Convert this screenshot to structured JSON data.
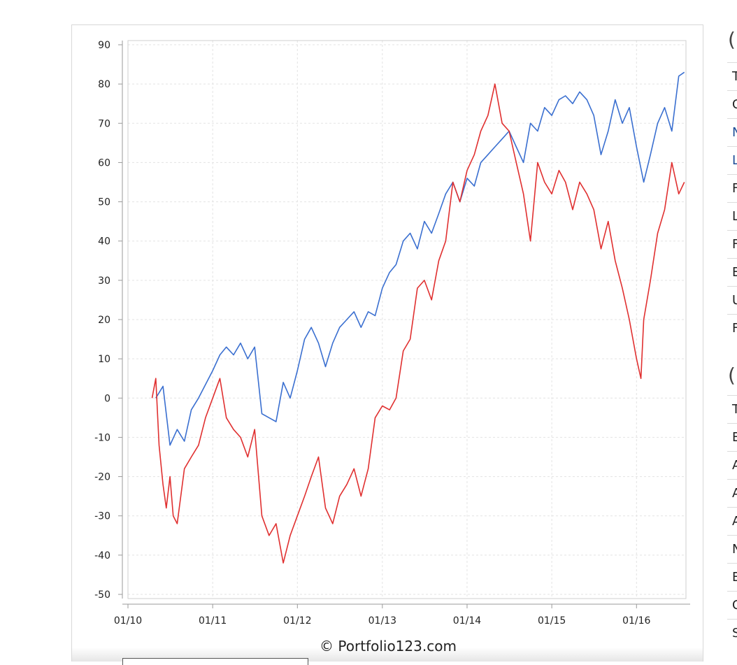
{
  "chart_data": {
    "type": "line",
    "title": "",
    "xlabel": "",
    "ylabel": "",
    "ylim": [
      -50,
      90
    ],
    "yticks": [
      90,
      80,
      70,
      60,
      50,
      40,
      30,
      20,
      10,
      0,
      -10,
      -20,
      -30,
      -40,
      -50
    ],
    "xlim": [
      "2010-01-01",
      "2016-08-01"
    ],
    "xticks": [
      "01/10",
      "01/11",
      "01/12",
      "01/13",
      "01/14",
      "01/15",
      "01/16"
    ],
    "grid": true,
    "series": [
      {
        "color": "#3a6fd0",
        "x": [
          "2010-05-01",
          "2010-06-01",
          "2010-07-01",
          "2010-08-01",
          "2010-09-01",
          "2010-10-01",
          "2010-11-01",
          "2011-01-01",
          "2011-02-01",
          "2011-03-01",
          "2011-04-01",
          "2011-05-01",
          "2011-06-01",
          "2011-07-01",
          "2011-08-01",
          "2011-09-01",
          "2011-10-01",
          "2011-11-01",
          "2011-12-01",
          "2012-01-01",
          "2012-02-01",
          "2012-03-01",
          "2012-04-01",
          "2012-05-01",
          "2012-06-01",
          "2012-07-01",
          "2012-08-01",
          "2012-09-01",
          "2012-10-01",
          "2012-11-01",
          "2012-12-01",
          "2013-01-01",
          "2013-02-01",
          "2013-03-01",
          "2013-04-01",
          "2013-05-01",
          "2013-06-01",
          "2013-07-01",
          "2013-08-01",
          "2013-09-01",
          "2013-10-01",
          "2013-11-01",
          "2013-12-01",
          "2014-01-01",
          "2014-02-01",
          "2014-03-01",
          "2014-04-01",
          "2014-05-01",
          "2014-06-01",
          "2014-07-01",
          "2014-08-01",
          "2014-09-01",
          "2014-10-01",
          "2014-11-01",
          "2014-12-01",
          "2015-01-01",
          "2015-02-01",
          "2015-03-01",
          "2015-04-01",
          "2015-05-01",
          "2015-06-01",
          "2015-07-01",
          "2015-08-01",
          "2015-09-01",
          "2015-10-01",
          "2015-11-01",
          "2015-12-01",
          "2016-01-01",
          "2016-02-01",
          "2016-03-01",
          "2016-04-01",
          "2016-05-01",
          "2016-06-01",
          "2016-07-01",
          "2016-07-25"
        ],
        "values": [
          0,
          3,
          -12,
          -8,
          -11,
          -3,
          0,
          7,
          11,
          13,
          11,
          14,
          10,
          13,
          -4,
          -5,
          -6,
          4,
          0,
          7,
          15,
          18,
          14,
          8,
          14,
          18,
          20,
          22,
          18,
          22,
          21,
          28,
          32,
          34,
          40,
          42,
          38,
          45,
          42,
          47,
          52,
          55,
          50,
          56,
          54,
          60,
          62,
          64,
          66,
          68,
          64,
          60,
          70,
          68,
          74,
          72,
          76,
          77,
          75,
          78,
          76,
          72,
          62,
          68,
          76,
          70,
          74,
          64,
          55,
          62,
          70,
          74,
          68,
          82,
          83
        ]
      },
      {
        "color": "#e03030",
        "x": [
          "2010-04-15",
          "2010-05-01",
          "2010-05-15",
          "2010-06-01",
          "2010-06-15",
          "2010-07-01",
          "2010-07-15",
          "2010-08-01",
          "2010-09-01",
          "2010-10-01",
          "2010-11-01",
          "2010-12-01",
          "2011-01-01",
          "2011-02-01",
          "2011-03-01",
          "2011-04-01",
          "2011-05-01",
          "2011-06-01",
          "2011-07-01",
          "2011-08-01",
          "2011-09-01",
          "2011-10-01",
          "2011-11-01",
          "2011-12-01",
          "2012-01-01",
          "2012-02-01",
          "2012-03-01",
          "2012-04-01",
          "2012-05-01",
          "2012-06-01",
          "2012-07-01",
          "2012-08-01",
          "2012-09-01",
          "2012-10-01",
          "2012-11-01",
          "2012-12-01",
          "2013-01-01",
          "2013-02-01",
          "2013-03-01",
          "2013-04-01",
          "2013-05-01",
          "2013-06-01",
          "2013-07-01",
          "2013-08-01",
          "2013-09-01",
          "2013-10-01",
          "2013-11-01",
          "2013-12-01",
          "2014-01-01",
          "2014-02-01",
          "2014-03-01",
          "2014-04-01",
          "2014-05-01",
          "2014-06-01",
          "2014-07-01",
          "2014-08-01",
          "2014-09-01",
          "2014-10-01",
          "2014-11-01",
          "2014-12-01",
          "2015-01-01",
          "2015-02-01",
          "2015-03-01",
          "2015-04-01",
          "2015-05-01",
          "2015-06-01",
          "2015-07-01",
          "2015-08-01",
          "2015-09-01",
          "2015-10-01",
          "2015-11-01",
          "2015-12-01",
          "2016-01-01",
          "2016-01-20",
          "2016-02-01",
          "2016-03-01",
          "2016-04-01",
          "2016-05-01",
          "2016-06-01",
          "2016-07-01",
          "2016-07-25"
        ],
        "values": [
          0,
          5,
          -12,
          -22,
          -28,
          -20,
          -30,
          -32,
          -18,
          -15,
          -12,
          -5,
          0,
          5,
          -5,
          -8,
          -10,
          -15,
          -8,
          -30,
          -35,
          -32,
          -42,
          -35,
          -30,
          -25,
          -20,
          -15,
          -28,
          -32,
          -25,
          -22,
          -18,
          -25,
          -18,
          -5,
          -2,
          -3,
          0,
          12,
          15,
          28,
          30,
          25,
          35,
          40,
          55,
          50,
          58,
          62,
          68,
          72,
          80,
          70,
          68,
          60,
          52,
          40,
          60,
          55,
          52,
          58,
          55,
          48,
          55,
          52,
          48,
          38,
          45,
          35,
          28,
          20,
          10,
          5,
          20,
          30,
          42,
          48,
          60,
          52,
          55
        ]
      }
    ]
  },
  "footer": {
    "copyright": "© Portfolio123.com"
  },
  "side_table": {
    "headings": [
      "(",
      "("
    ],
    "group1": [
      "T",
      "C",
      "N",
      "L",
      "F",
      "L",
      "F",
      "E",
      "U",
      "F"
    ],
    "group2": [
      "T",
      "E",
      "A",
      "A",
      "A",
      "N",
      "E",
      "C",
      "S"
    ]
  }
}
